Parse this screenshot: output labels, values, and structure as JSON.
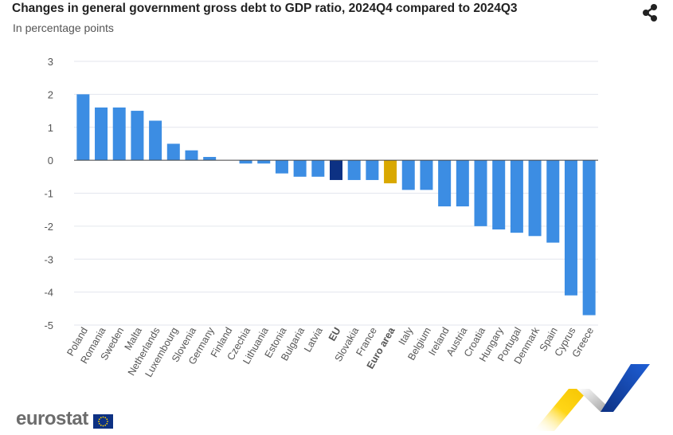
{
  "header": {
    "title": "Changes in general government gross debt to GDP ratio, 2024Q4 compared to 2024Q3",
    "subtitle": "In percentage points",
    "share_icon": "share-icon"
  },
  "footer": {
    "logo_text": "eurostat",
    "flag_icon": "eu-flag-icon",
    "decoration": "eurostat-chevron-decoration"
  },
  "colors": {
    "bar": "#3c8de3",
    "eu": "#0d3183",
    "euro_area": "#d9a800",
    "grid": "#e3e6ee",
    "axis": "#444444"
  },
  "chart_data": {
    "type": "bar",
    "title": "Changes in general government gross debt to GDP ratio, 2024Q4 compared to 2024Q3",
    "subtitle": "In percentage points",
    "ylim": [
      -5,
      3
    ],
    "yticks": [
      3,
      2,
      1,
      0,
      -1,
      -2,
      -3,
      -4,
      -5
    ],
    "ytick_labels": [
      "3",
      "2",
      "1",
      "0",
      "-1",
      "-2",
      "-3",
      "-4",
      "-5"
    ],
    "grid": true,
    "categories": [
      "Poland",
      "Romania",
      "Sweden",
      "Malta",
      "Netherlands",
      "Luxembourg",
      "Slovenia",
      "Germany",
      "Finland",
      "Czechia",
      "Lithuania",
      "Estonia",
      "Bulgaria",
      "Latvia",
      "EU",
      "Slovakia",
      "France",
      "Euro area",
      "Italy",
      "Belgium",
      "Ireland",
      "Austria",
      "Croatia",
      "Hungary",
      "Portugal",
      "Denmark",
      "Spain",
      "Cyprus",
      "Greece"
    ],
    "values": [
      2.0,
      1.6,
      1.6,
      1.5,
      1.2,
      0.5,
      0.3,
      0.1,
      0.0,
      -0.1,
      -0.1,
      -0.4,
      -0.5,
      -0.5,
      -0.6,
      -0.6,
      -0.6,
      -0.7,
      -0.9,
      -0.9,
      -1.4,
      -1.4,
      -2.0,
      -2.1,
      -2.2,
      -2.3,
      -2.5,
      -4.1,
      -4.7
    ],
    "highlight": {
      "EU": "#0d3183",
      "Euro area": "#d9a800"
    },
    "bold_categories": [
      "EU",
      "Euro area"
    ]
  }
}
